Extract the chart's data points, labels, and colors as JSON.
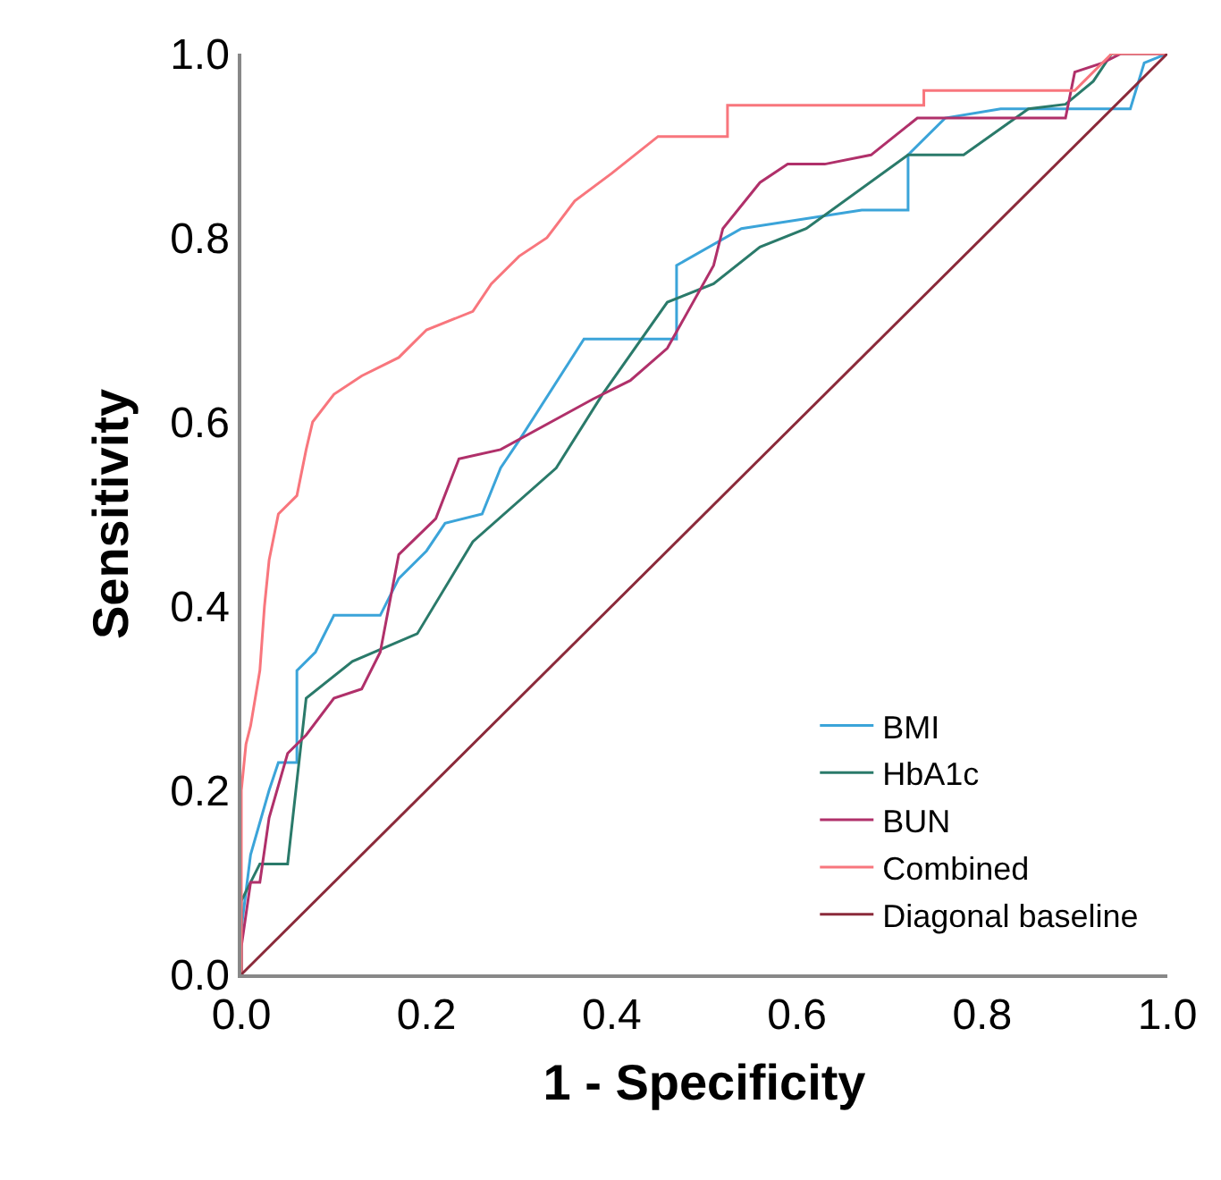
{
  "chart_data": {
    "type": "line",
    "xlabel": "1 - Specificity",
    "ylabel": "Sensitivity",
    "xlim": [
      0,
      1
    ],
    "ylim": [
      0,
      1
    ],
    "xticks": [
      {
        "value": 0,
        "label": "0.0"
      },
      {
        "value": 0.2,
        "label": "0.2"
      },
      {
        "value": 0.4,
        "label": "0.4"
      },
      {
        "value": 0.6,
        "label": "0.6"
      },
      {
        "value": 0.8,
        "label": "0.8"
      },
      {
        "value": 1,
        "label": "1.0"
      }
    ],
    "yticks": [
      {
        "value": 0,
        "label": "0.0"
      },
      {
        "value": 0.2,
        "label": "0.2"
      },
      {
        "value": 0.4,
        "label": "0.4"
      },
      {
        "value": 0.6,
        "label": "0.6"
      },
      {
        "value": 0.8,
        "label": "0.8"
      },
      {
        "value": 1,
        "label": "1.0"
      }
    ],
    "grid": false,
    "legend": "bottom right",
    "marker": "none",
    "line_style": "solid",
    "series": [
      {
        "name": "BMI",
        "color": "#3ba4d9",
        "x": [
          0,
          0,
          0.01,
          0.03,
          0.04,
          0.06,
          0.06,
          0.08,
          0.1,
          0.15,
          0.17,
          0.2,
          0.22,
          0.26,
          0.28,
          0.3,
          0.37,
          0.47,
          0.47,
          0.54,
          0.67,
          0.72,
          0.72,
          0.76,
          0.82,
          0.96,
          0.975,
          1
        ],
        "values": [
          0,
          0.05,
          0.13,
          0.2,
          0.23,
          0.23,
          0.33,
          0.35,
          0.39,
          0.39,
          0.43,
          0.46,
          0.49,
          0.5,
          0.55,
          0.58,
          0.69,
          0.69,
          0.77,
          0.81,
          0.83,
          0.83,
          0.89,
          0.93,
          0.94,
          0.94,
          0.99,
          1
        ]
      },
      {
        "name": "HbA1c",
        "color": "#2a7a6a",
        "x": [
          0,
          0,
          0.02,
          0.05,
          0.07,
          0.12,
          0.19,
          0.25,
          0.34,
          0.39,
          0.46,
          0.51,
          0.56,
          0.61,
          0.72,
          0.78,
          0.85,
          0.89,
          0.92,
          0.94,
          1
        ],
        "values": [
          0,
          0.08,
          0.12,
          0.12,
          0.3,
          0.34,
          0.37,
          0.47,
          0.55,
          0.63,
          0.73,
          0.75,
          0.79,
          0.81,
          0.89,
          0.89,
          0.94,
          0.945,
          0.97,
          1,
          1
        ]
      },
      {
        "name": "BUN",
        "color": "#b0306a",
        "x": [
          0,
          0,
          0.01,
          0.02,
          0.03,
          0.05,
          0.07,
          0.1,
          0.13,
          0.15,
          0.17,
          0.21,
          0.235,
          0.28,
          0.38,
          0.42,
          0.46,
          0.51,
          0.52,
          0.56,
          0.59,
          0.63,
          0.68,
          0.73,
          0.89,
          0.9,
          0.93,
          0.95,
          1
        ],
        "values": [
          0,
          0.03,
          0.1,
          0.1,
          0.17,
          0.24,
          0.26,
          0.3,
          0.31,
          0.35,
          0.456,
          0.495,
          0.56,
          0.57,
          0.625,
          0.645,
          0.68,
          0.77,
          0.81,
          0.86,
          0.88,
          0.88,
          0.89,
          0.93,
          0.93,
          0.98,
          0.99,
          1,
          1
        ]
      },
      {
        "name": "Combined",
        "color": "#f8767d",
        "x": [
          0,
          0,
          0.005,
          0.01,
          0.02,
          0.025,
          0.03,
          0.04,
          0.06,
          0.07,
          0.077,
          0.1,
          0.13,
          0.17,
          0.2,
          0.25,
          0.27,
          0.3,
          0.33,
          0.36,
          0.4,
          0.45,
          0.525,
          0.525,
          0.737,
          0.737,
          0.9,
          0.91,
          0.93,
          0.94,
          1
        ],
        "values": [
          0,
          0.2,
          0.25,
          0.27,
          0.33,
          0.4,
          0.45,
          0.5,
          0.52,
          0.57,
          0.6,
          0.63,
          0.65,
          0.67,
          0.7,
          0.72,
          0.75,
          0.78,
          0.8,
          0.84,
          0.87,
          0.91,
          0.91,
          0.944,
          0.944,
          0.96,
          0.96,
          0.97,
          0.99,
          1,
          1
        ]
      },
      {
        "name": "Diagonal baseline",
        "color": "#8b2a3a",
        "x": [
          0,
          1
        ],
        "values": [
          0,
          1
        ]
      }
    ]
  }
}
